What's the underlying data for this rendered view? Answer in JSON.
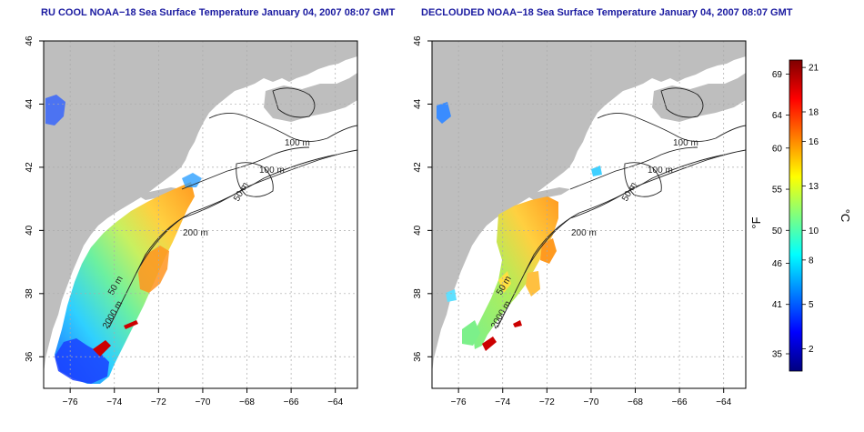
{
  "panels": [
    {
      "title": "RU COOL NOAA−18 Sea Surface Temperature January 04, 2007 08:07 GMT"
    },
    {
      "title": "DECLOUDED NOAA−18 Sea Surface Temperature January 04, 2007 08:07 GMT"
    }
  ],
  "axes": {
    "x_ticks": [
      -76,
      -74,
      -72,
      -70,
      -68,
      -66,
      -64
    ],
    "x_tick_labels": [
      "−76",
      "−74",
      "−72",
      "−70",
      "−68",
      "−66",
      "−64"
    ],
    "y_ticks": [
      36,
      38,
      40,
      42,
      44,
      46
    ],
    "y_tick_labels": [
      "36",
      "38",
      "40",
      "42",
      "44",
      "46"
    ],
    "lon_range": [
      -77.2,
      -63.0
    ],
    "lat_range": [
      35.0,
      46.0
    ],
    "grid": "dotted"
  },
  "contours": {
    "labels_left": [
      "100 m",
      "100 m",
      "50 m",
      "200 m",
      "50 m",
      "2000 m"
    ],
    "labels_right": [
      "100 m",
      "100 m",
      "50 m",
      "200 m",
      "50 m",
      "2000 m"
    ]
  },
  "colorbar": {
    "unit_left": "°F",
    "unit_right": "°C",
    "fahrenheit_ticks": [
      "69",
      "64",
      "60",
      "55",
      "50",
      "46",
      "41",
      "35"
    ],
    "celsius_ticks": [
      "21",
      "18",
      "16",
      "13",
      "10",
      "8",
      "5",
      "2"
    ],
    "colors": [
      "#00007f",
      "#0000ff",
      "#007fff",
      "#00ffff",
      "#7fff7f",
      "#ffff00",
      "#ff7f00",
      "#ff0000",
      "#7f0000"
    ],
    "celsius_range": [
      0.5,
      21.5
    ]
  },
  "colors": {
    "land": "#bebebe",
    "ocean": "#ffffff",
    "contour": "#222222",
    "title": "#1a1aa0"
  }
}
